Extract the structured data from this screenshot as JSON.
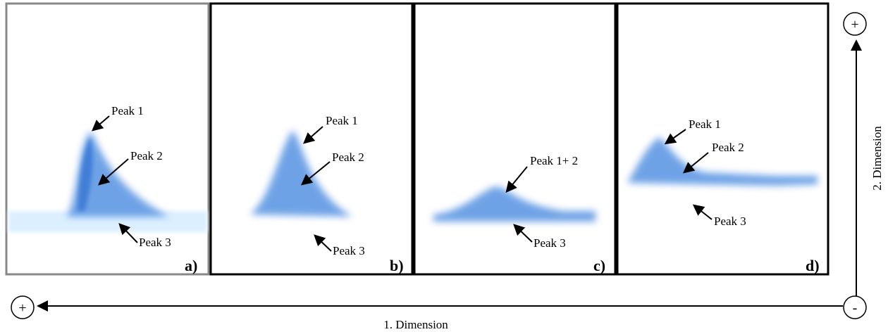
{
  "panels": [
    {
      "label": "a)",
      "peaks": [
        "Peak 1",
        "Peak 2",
        "Peak 3"
      ]
    },
    {
      "label": "b)",
      "peaks": [
        "Peak 1",
        "Peak 2",
        "Peak 3"
      ]
    },
    {
      "label": "c)",
      "peaks": [
        "Peak 1+ 2",
        "Peak 3"
      ]
    },
    {
      "label": "d)",
      "peaks": [
        "Peak 1",
        "Peak 2",
        "Peak 3"
      ]
    }
  ],
  "axes": {
    "dimension1": "1. Dimension",
    "dimension2": "2. Dimension",
    "plus_top": "+",
    "plus_left": "+",
    "minus": "-"
  }
}
